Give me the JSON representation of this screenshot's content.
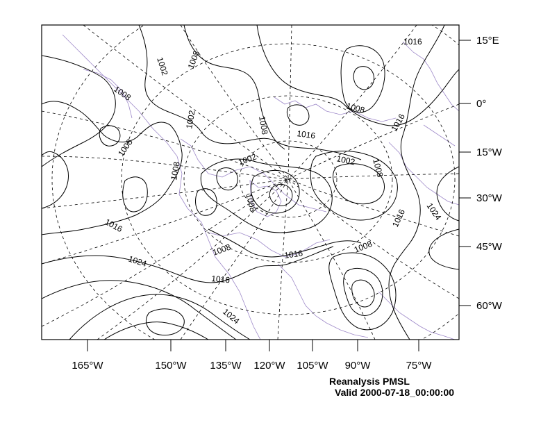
{
  "title": "Reanalysis PMSL",
  "valid_time": "Valid 2000-07-18_00:00:00",
  "colors": {
    "contour": "#000000",
    "coast": "#9d88c8",
    "frame": "#000000",
    "grid": "#000000"
  },
  "bottom_axis_labels": [
    "165°W",
    "150°W",
    "135°W",
    "120°W",
    "105°W",
    "90°W",
    "75°W"
  ],
  "right_axis_labels": [
    "15°E",
    "0°",
    "15°W",
    "30°W",
    "45°W",
    "60°W"
  ],
  "contour_labels": [
    "1002",
    "1008",
    "1008",
    "1008",
    "1002",
    "1008",
    "1016",
    "1016",
    "1008",
    "1002",
    "1002",
    "1008",
    "1008",
    "1008",
    "1016",
    "1024",
    "1016",
    "1008",
    "1016",
    "1016",
    "1024",
    "1016",
    "1008",
    "1024"
  ],
  "chart_data": {
    "type": "contour map",
    "field": "PMSL",
    "contour_levels_labeled": [
      1002,
      1008,
      1016,
      1024
    ]
  }
}
